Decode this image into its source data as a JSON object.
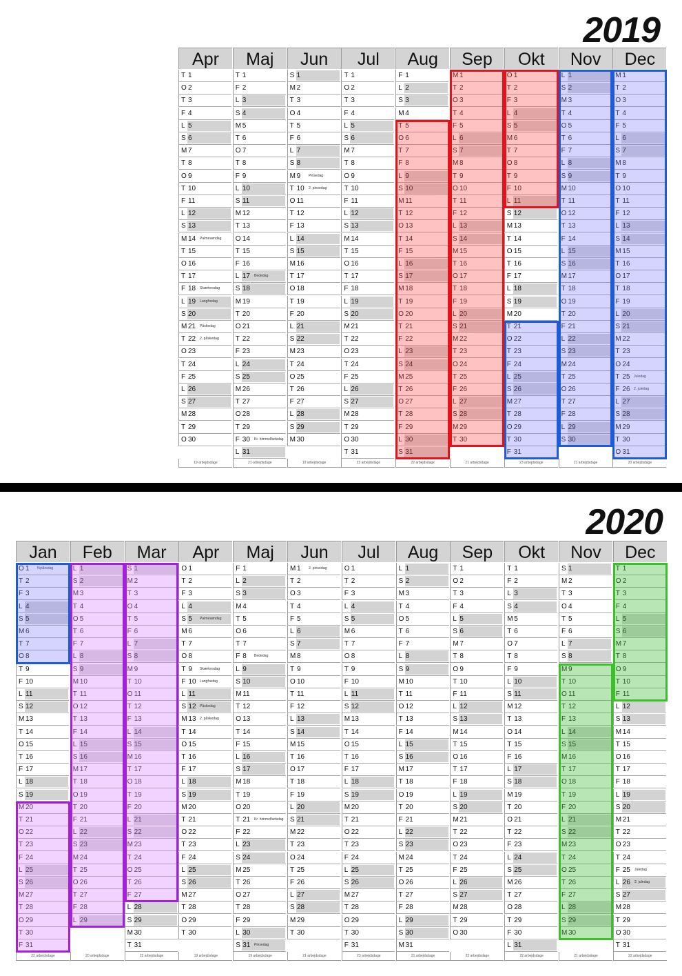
{
  "calendars": [
    {
      "year": "2019",
      "months": [
        {
          "name": "Apr",
          "first": 1,
          "days": 30,
          "footer": "19 arbejdsdage"
        },
        {
          "name": "Maj",
          "first": 3,
          "days": 31,
          "footer": "21 arbejdsdage"
        },
        {
          "name": "Jun",
          "first": 6,
          "days": 30,
          "footer": "19 arbejdsdage"
        },
        {
          "name": "Jul",
          "first": 1,
          "days": 31,
          "footer": "23 arbejdsdage"
        },
        {
          "name": "Aug",
          "first": 4,
          "days": 31,
          "footer": "22 arbejdsdage"
        },
        {
          "name": "Sep",
          "first": 0,
          "days": 30,
          "footer": "21 arbejdsdage"
        },
        {
          "name": "Okt",
          "first": 2,
          "days": 31,
          "footer": "23 arbejdsdage"
        },
        {
          "name": "Nov",
          "first": 5,
          "days": 30,
          "footer": "21 arbejdsdage"
        },
        {
          "name": "Dec",
          "first": 0,
          "days": 31,
          "footer": "20 arbejdsdage"
        }
      ],
      "notes": [
        {
          "m": 0,
          "d": 14,
          "t": "Palmesøndag"
        },
        {
          "m": 0,
          "d": 18,
          "t": "Skærtorsdag"
        },
        {
          "m": 0,
          "d": 19,
          "t": "Langfredag"
        },
        {
          "m": 0,
          "d": 21,
          "t": "Påskedag"
        },
        {
          "m": 0,
          "d": 22,
          "t": "2. påskedag"
        },
        {
          "m": 1,
          "d": 17,
          "t": "Bededag"
        },
        {
          "m": 1,
          "d": 30,
          "t": "Kr. himmelfartsdag"
        },
        {
          "m": 2,
          "d": 9,
          "t": "Pinsedag"
        },
        {
          "m": 2,
          "d": 10,
          "t": "2. pinsedag"
        },
        {
          "m": 8,
          "d": 25,
          "t": "Juledag"
        },
        {
          "m": 8,
          "d": 26,
          "t": "2. juledag"
        }
      ],
      "highlights": [
        {
          "color": "red",
          "col": 4,
          "from": 5,
          "to": 31
        },
        {
          "color": "red",
          "col": 5,
          "from": 1,
          "to": 30
        },
        {
          "color": "red",
          "col": 6,
          "from": 1,
          "to": 11
        },
        {
          "color": "blue",
          "col": 6,
          "from": 21,
          "to": 31
        },
        {
          "color": "blue",
          "col": 7,
          "from": 1,
          "to": 30
        },
        {
          "color": "blue",
          "col": 8,
          "from": 1,
          "to": 31
        }
      ]
    },
    {
      "year": "2020",
      "months": [
        {
          "name": "Jan",
          "first": 2,
          "days": 31,
          "footer": "22 arbejdsdage"
        },
        {
          "name": "Feb",
          "first": 5,
          "days": 29,
          "footer": "20 arbejdsdage"
        },
        {
          "name": "Mar",
          "first": 6,
          "days": 31,
          "footer": "22 arbejdsdage"
        },
        {
          "name": "Apr",
          "first": 2,
          "days": 30,
          "footer": "19 arbejdsdage"
        },
        {
          "name": "Maj",
          "first": 4,
          "days": 31,
          "footer": "19 arbejdsdage"
        },
        {
          "name": "Jun",
          "first": 0,
          "days": 30,
          "footer": "21 arbejdsdage"
        },
        {
          "name": "Jul",
          "first": 2,
          "days": 31,
          "footer": "23 arbejdsdage"
        },
        {
          "name": "Aug",
          "first": 5,
          "days": 31,
          "footer": "21 arbejdsdage"
        },
        {
          "name": "Sep",
          "first": 1,
          "days": 30,
          "footer": "22 arbejdsdage"
        },
        {
          "name": "Okt",
          "first": 3,
          "days": 31,
          "footer": "22 arbejdsdage"
        },
        {
          "name": "Nov",
          "first": 6,
          "days": 30,
          "footer": "21 arbejdsdage"
        },
        {
          "name": "Dec",
          "first": 1,
          "days": 31,
          "footer": "22 arbejdsdage"
        }
      ],
      "notes": [
        {
          "m": 0,
          "d": 1,
          "t": "Nytårsdag"
        },
        {
          "m": 3,
          "d": 5,
          "t": "Palmesøndag"
        },
        {
          "m": 3,
          "d": 9,
          "t": "Skærtorsdag"
        },
        {
          "m": 3,
          "d": 10,
          "t": "Langfredag"
        },
        {
          "m": 3,
          "d": 12,
          "t": "Påskedag"
        },
        {
          "m": 3,
          "d": 13,
          "t": "2. påskedag"
        },
        {
          "m": 4,
          "d": 8,
          "t": "Bededag"
        },
        {
          "m": 4,
          "d": 21,
          "t": "Kr. himmelfartsdag"
        },
        {
          "m": 4,
          "d": 31,
          "t": "Pinsedag"
        },
        {
          "m": 5,
          "d": 1,
          "t": "2. pinsedag"
        },
        {
          "m": 11,
          "d": 25,
          "t": "Juledag"
        },
        {
          "m": 11,
          "d": 26,
          "t": "2. juledag"
        }
      ],
      "highlights": [
        {
          "color": "blue",
          "col": 0,
          "from": 1,
          "to": 8
        },
        {
          "color": "purple",
          "col": 0,
          "from": 20,
          "to": 31
        },
        {
          "color": "purple",
          "col": 1,
          "from": 1,
          "to": 29
        },
        {
          "color": "purple",
          "col": 2,
          "from": 1,
          "to": 27
        },
        {
          "color": "green",
          "col": 10,
          "from": 9,
          "to": 30
        },
        {
          "color": "green",
          "col": 11,
          "from": 1,
          "to": 11
        }
      ]
    }
  ],
  "weekday_letters": [
    "M",
    "T",
    "O",
    "T",
    "F",
    "L",
    "S"
  ]
}
